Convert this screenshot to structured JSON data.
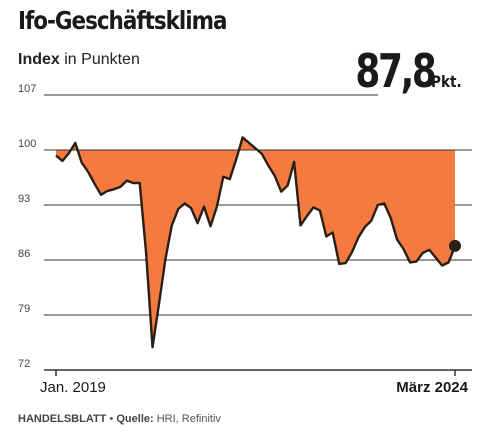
{
  "header": {
    "title": "Ifo-Geschäftsklima",
    "subtitle_bold": "Index",
    "subtitle_rest": " in Punkten",
    "latest_value": "87,8",
    "latest_unit": "Pkt."
  },
  "footer": {
    "brand": "HANDELSBLATT",
    "separator": " • ",
    "source_label": "Quelle:",
    "source_text": " HRI, Refinitiv"
  },
  "colors": {
    "fill": "#f47a3f",
    "line": "#2a1f14",
    "grid": "#333333",
    "dot": "#2a1f14"
  },
  "chart_data": {
    "type": "area",
    "title": "Ifo-Geschäftsklima",
    "subtitle": "Index in Punkten",
    "baseline": 100,
    "ylim": [
      72,
      107
    ],
    "yticks": [
      72,
      79,
      86,
      93,
      100,
      107
    ],
    "ytick_labels": [
      "72",
      "79",
      "86",
      "93",
      "100",
      "107"
    ],
    "xtick_labels": [
      {
        "label": "Jan. 2019",
        "index": 0
      },
      {
        "label": "März 2024",
        "index": 62
      }
    ],
    "x_start": "2019-01",
    "x_end": "2024-03",
    "grid": true,
    "highlight_last_point": true,
    "values": [
      99.3,
      98.6,
      99.6,
      100.9,
      98.4,
      97.2,
      95.7,
      94.3,
      94.8,
      95.0,
      95.3,
      96.1,
      95.8,
      95.8,
      86.9,
      74.9,
      80.4,
      86.1,
      90.4,
      92.5,
      93.2,
      92.6,
      90.7,
      92.8,
      90.3,
      92.8,
      96.6,
      96.3,
      98.8,
      101.6,
      100.9,
      100.2,
      99.5,
      98.0,
      96.7,
      94.7,
      95.5,
      98.5,
      90.4,
      91.6,
      92.7,
      92.3,
      89.0,
      89.5,
      85.5,
      85.6,
      87.0,
      88.9,
      90.2,
      91.0,
      93.0,
      93.2,
      91.4,
      88.6,
      87.4,
      85.7,
      85.8,
      86.9,
      87.3,
      86.3,
      85.3,
      85.7,
      87.8
    ]
  }
}
